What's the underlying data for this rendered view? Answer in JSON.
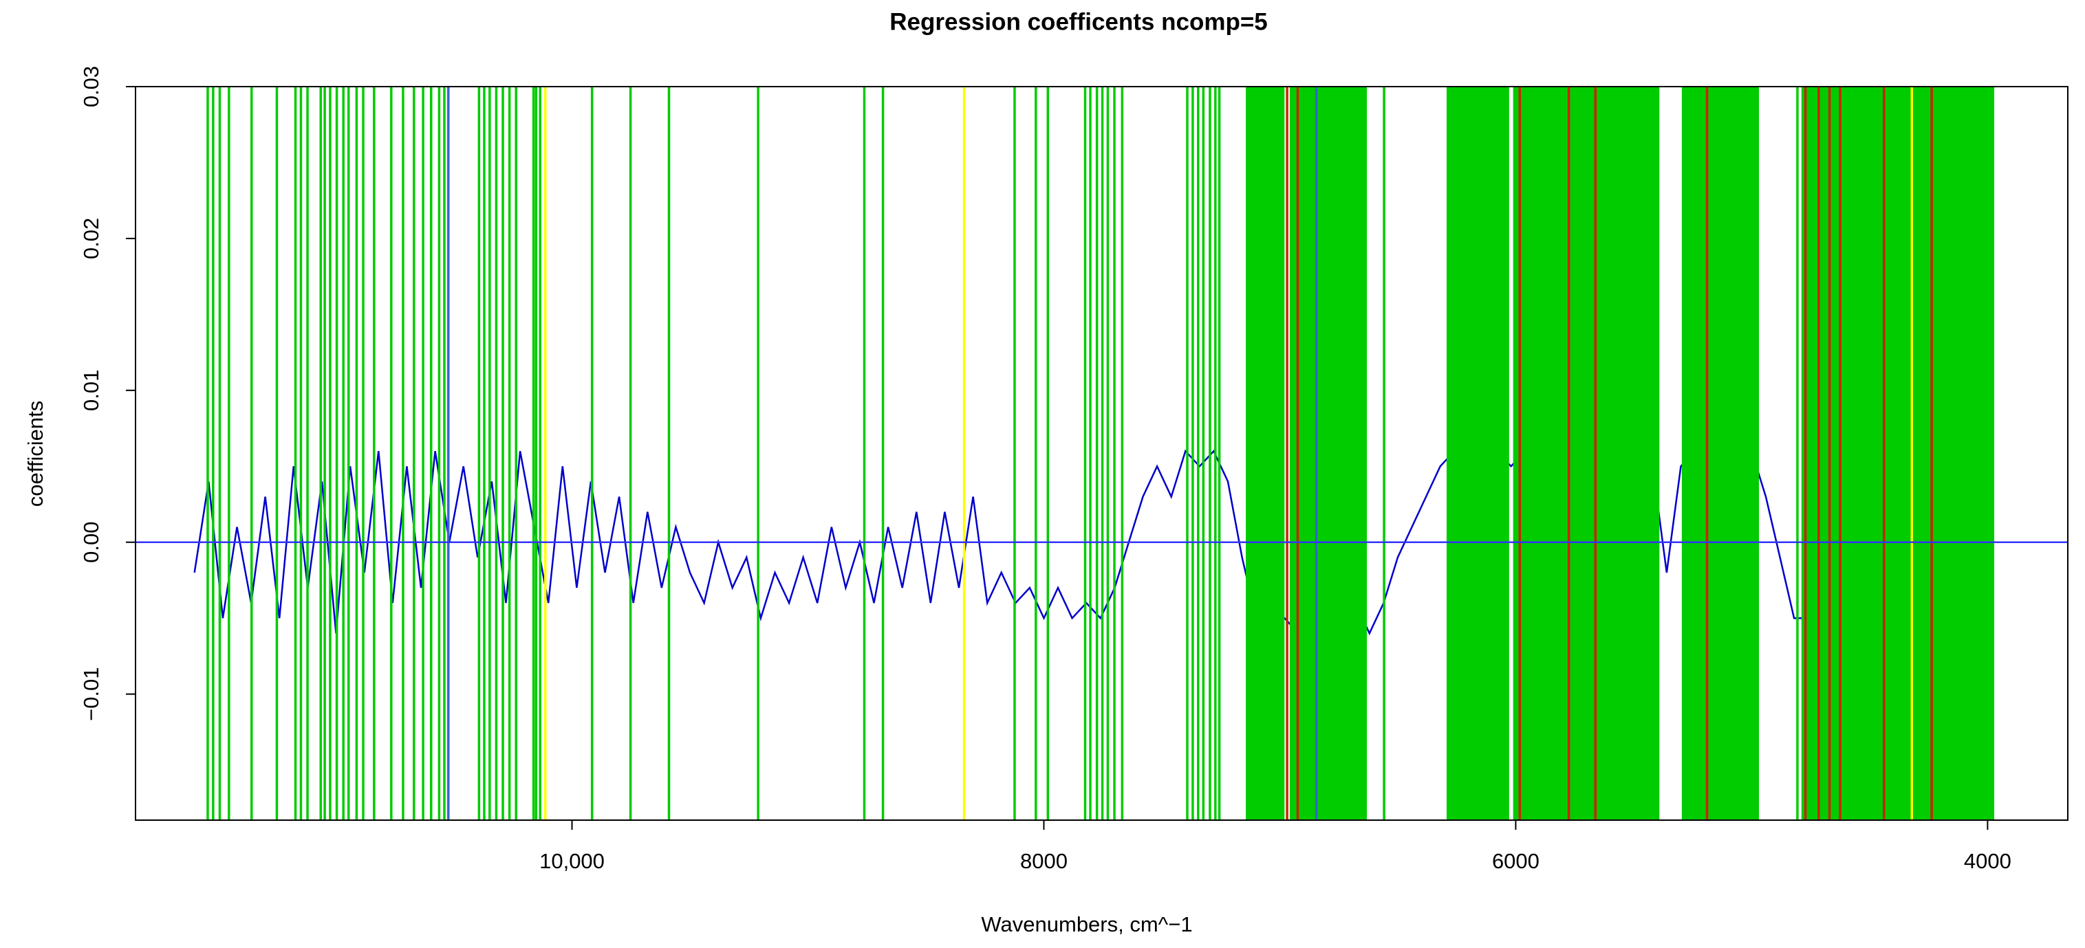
{
  "chart_data": {
    "type": "line",
    "title": "Regression coefficents ncomp=5",
    "x_label": "Wavenumbers, cm^−1",
    "y_label": "coefficients",
    "xlim": [
      11850,
      3660
    ],
    "xticks": [
      {
        "value": 10000,
        "label": "10,000"
      },
      8000,
      6000,
      4000
    ],
    "ylim": [
      -0.0183,
      0.03
    ],
    "yticks": [
      {
        "value": -0.01,
        "label": "−0.01"
      },
      {
        "value": 0,
        "label": "0.00"
      },
      0.01,
      0.02,
      0.03
    ],
    "hline": {
      "value": 0,
      "color": "#3333ff"
    },
    "x": [
      11600,
      11540,
      11480,
      11420,
      11360,
      11300,
      11240,
      11180,
      11120,
      11060,
      11000,
      10940,
      10880,
      10820,
      10760,
      10700,
      10640,
      10580,
      10520,
      10460,
      10400,
      10340,
      10280,
      10220,
      10160,
      10100,
      10040,
      9980,
      9920,
      9860,
      9800,
      9740,
      9680,
      9620,
      9560,
      9500,
      9440,
      9380,
      9320,
      9260,
      9200,
      9140,
      9080,
      9020,
      8960,
      8900,
      8840,
      8780,
      8720,
      8660,
      8600,
      8540,
      8480,
      8420,
      8360,
      8300,
      8240,
      8180,
      8120,
      8060,
      8000,
      7940,
      7880,
      7820,
      7760,
      7700,
      7640,
      7580,
      7520,
      7460,
      7400,
      7340,
      7280,
      7220,
      7160,
      7100,
      7040,
      6980,
      6920,
      6860,
      6800,
      6740,
      6680,
      6620,
      6560,
      6500,
      6440,
      6380,
      6320,
      6260,
      6200,
      6140,
      6080,
      6020,
      5960,
      5900,
      5840,
      5780,
      5720,
      5660,
      5600,
      5540,
      5480,
      5420,
      5360,
      5300,
      5240,
      5180,
      5120,
      5060,
      5000,
      4940,
      4880,
      4820,
      4760,
      4700,
      4640,
      4580,
      4520,
      4460,
      4400,
      4340,
      4280,
      4220,
      4160,
      4100,
      4040,
      3980
    ],
    "series": [
      {
        "color": "#0000cc",
        "values": [
          -0.002,
          0.004,
          -0.005,
          0.001,
          -0.004,
          0.003,
          -0.005,
          0.005,
          -0.003,
          0.004,
          -0.006,
          0.005,
          -0.002,
          0.006,
          -0.004,
          0.005,
          -0.003,
          0.006,
          0,
          0.005,
          -0.001,
          0.004,
          -0.004,
          0.006,
          0.001,
          -0.004,
          0.005,
          -0.003,
          0.004,
          -0.002,
          0.003,
          -0.004,
          0.002,
          -0.003,
          0.001,
          -0.002,
          -0.004,
          0,
          -0.003,
          -0.001,
          -0.005,
          -0.002,
          -0.004,
          -0.001,
          -0.004,
          0.001,
          -0.003,
          0,
          -0.004,
          0.001,
          -0.003,
          0.002,
          -0.004,
          0.002,
          -0.003,
          0.003,
          -0.004,
          -0.002,
          -0.004,
          -0.003,
          -0.005,
          -0.003,
          -0.005,
          -0.004,
          -0.005,
          -0.003,
          0,
          0.003,
          0.005,
          0.003,
          0.006,
          0.005,
          0.006,
          0.004,
          -0.001,
          -0.005,
          -0.006,
          -0.005,
          -0.006,
          -0.004,
          -0.006,
          -0.005,
          -0.004,
          -0.006,
          -0.004,
          -0.001,
          0.001,
          0.003,
          0.005,
          0.006,
          0.005,
          0.006,
          0.006,
          0.005,
          0.006,
          0.006,
          0.005,
          0.006,
          0.007,
          0.006,
          0.006,
          0.005,
          0.006,
          0.005,
          -0.002,
          0.005,
          0.006,
          0.006,
          0.005,
          0.006,
          0.006,
          0.003,
          -0.001,
          -0.005,
          -0.005,
          -0.004,
          -0.005,
          -0.004,
          -0.005,
          -0.004,
          -0.005,
          -0.004,
          -0.005,
          -0.004,
          -0.005,
          -0.004,
          -0.005,
          -0.005
        ]
      }
    ],
    "bands": [
      {
        "color": "#00cc00",
        "ranges": [
          [
            7144,
            6980
          ],
          [
            6958,
            6631
          ],
          [
            6293,
            6028
          ],
          [
            6011,
            5391
          ],
          [
            5296,
            4969
          ],
          [
            4789,
            3972
          ]
        ]
      }
    ],
    "vlines": [
      {
        "color": "#00cc00",
        "x": [
          11544,
          11521,
          11493,
          11454,
          11358,
          11251,
          11172,
          11149,
          11121,
          11065,
          11048,
          11025,
          10997,
          10969,
          10947,
          10913,
          10885,
          10839,
          10766,
          10716,
          10670,
          10631,
          10597,
          10563,
          10541,
          10394,
          10372,
          10349,
          10321,
          10293,
          10265,
          10237,
          10163,
          10152,
          10135,
          9915,
          9752,
          9589,
          9211,
          8761,
          8682,
          8124,
          8034,
          7983,
          7825,
          7803,
          7775,
          7752,
          7729,
          7701,
          7668,
          7392,
          7369,
          7346,
          7324,
          7296,
          7273,
          7256,
          6558,
          4806
        ]
      },
      {
        "color": "#ffff00",
        "x": [
          10113,
          8338,
          4321
        ]
      },
      {
        "color": "#3366cc",
        "x": [
          10524,
          6845
        ]
      },
      {
        "color": "#cc2200",
        "x": [
          6969,
          6924,
          5983,
          5775,
          5662,
          5189,
          4772,
          4716,
          4670,
          4625,
          4439,
          4237
        ]
      }
    ]
  }
}
